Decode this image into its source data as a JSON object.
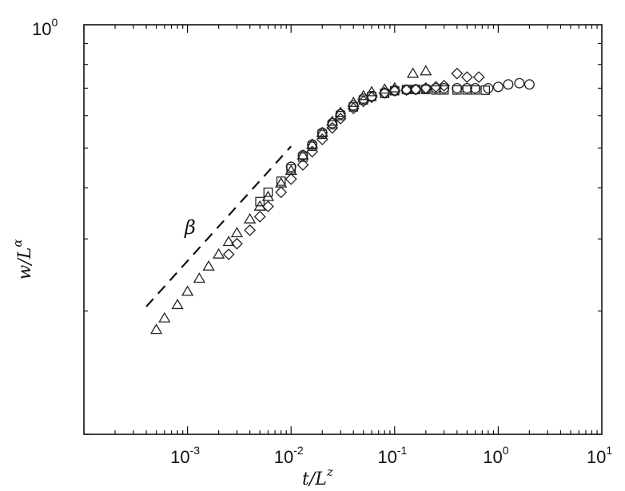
{
  "chart_data": {
    "type": "scatter",
    "xscale": "log",
    "yscale": "log",
    "xlim": [
      0.0001,
      10
    ],
    "ylim": [
      0.1,
      1
    ],
    "xlabel_base": "t/L",
    "xlabel_exp": "z",
    "ylabel_base": "w/L",
    "ylabel_exp": "α",
    "annotation": "β",
    "grid": false,
    "xticks": [
      {
        "value": 0.001,
        "base": "10",
        "exp": "-3"
      },
      {
        "value": 0.01,
        "base": "10",
        "exp": "-2"
      },
      {
        "value": 0.1,
        "base": "10",
        "exp": "-1"
      },
      {
        "value": 1,
        "base": "10",
        "exp": "0"
      },
      {
        "value": 10,
        "base": "10",
        "exp": "1"
      }
    ],
    "yticks": [
      {
        "value": 1,
        "base": "10",
        "exp": "0"
      }
    ],
    "reference_line": {
      "style": "dashed",
      "x": [
        0.0004,
        0.01
      ],
      "y": [
        0.205,
        0.505
      ]
    },
    "series": [
      {
        "marker": "triangle",
        "x": [
          0.0005,
          0.0006,
          0.0008,
          0.001,
          0.0013,
          0.0016,
          0.002,
          0.0025,
          0.003,
          0.004,
          0.005,
          0.006,
          0.008,
          0.01,
          0.013,
          0.016,
          0.02,
          0.025,
          0.03,
          0.04,
          0.05,
          0.06,
          0.08,
          0.1,
          0.15,
          0.2
        ],
        "y": [
          0.18,
          0.192,
          0.207,
          0.223,
          0.24,
          0.257,
          0.275,
          0.295,
          0.31,
          0.335,
          0.36,
          0.38,
          0.41,
          0.44,
          0.48,
          0.51,
          0.545,
          0.58,
          0.61,
          0.645,
          0.67,
          0.685,
          0.695,
          0.7,
          0.76,
          0.77
        ]
      },
      {
        "marker": "diamond",
        "x": [
          0.0025,
          0.003,
          0.004,
          0.005,
          0.006,
          0.008,
          0.01,
          0.013,
          0.016,
          0.02,
          0.025,
          0.03,
          0.04,
          0.05,
          0.06,
          0.08,
          0.1,
          0.13,
          0.16,
          0.2,
          0.25,
          0.3,
          0.4,
          0.5,
          0.65
        ],
        "y": [
          0.275,
          0.292,
          0.315,
          0.34,
          0.36,
          0.39,
          0.42,
          0.455,
          0.49,
          0.525,
          0.56,
          0.59,
          0.625,
          0.65,
          0.665,
          0.682,
          0.69,
          0.693,
          0.695,
          0.7,
          0.705,
          0.71,
          0.76,
          0.745,
          0.745
        ]
      },
      {
        "marker": "square",
        "x": [
          0.005,
          0.006,
          0.008,
          0.01,
          0.013,
          0.016,
          0.02,
          0.025,
          0.03,
          0.04,
          0.05,
          0.06,
          0.08,
          0.1,
          0.13,
          0.16,
          0.2,
          0.25,
          0.3,
          0.4,
          0.5,
          0.6,
          0.75
        ],
        "y": [
          0.37,
          0.39,
          0.415,
          0.445,
          0.475,
          0.505,
          0.54,
          0.57,
          0.6,
          0.63,
          0.655,
          0.668,
          0.68,
          0.69,
          0.695,
          0.695,
          0.695,
          0.693,
          0.693,
          0.693,
          0.693,
          0.693,
          0.692
        ]
      },
      {
        "marker": "circle",
        "x": [
          0.01,
          0.013,
          0.016,
          0.02,
          0.025,
          0.03,
          0.04,
          0.05,
          0.06,
          0.08,
          0.1,
          0.13,
          0.16,
          0.2,
          0.25,
          0.3,
          0.4,
          0.5,
          0.6,
          0.8,
          1.0,
          1.25,
          1.6,
          2.0
        ],
        "y": [
          0.45,
          0.48,
          0.51,
          0.545,
          0.575,
          0.605,
          0.635,
          0.66,
          0.67,
          0.68,
          0.69,
          0.693,
          0.695,
          0.698,
          0.7,
          0.7,
          0.7,
          0.7,
          0.7,
          0.7,
          0.705,
          0.715,
          0.72,
          0.715
        ]
      }
    ]
  }
}
